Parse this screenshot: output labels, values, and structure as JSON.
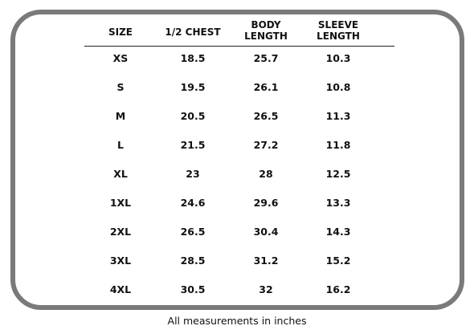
{
  "table": {
    "headers": [
      "SIZE",
      "1/2 CHEST",
      "BODY\nLENGTH",
      "SLEEVE\nLENGTH"
    ],
    "rows": [
      [
        "XS",
        18.5,
        25.7,
        10.3
      ],
      [
        "S",
        19.5,
        26.1,
        10.8
      ],
      [
        "M",
        20.5,
        26.5,
        11.3
      ],
      [
        "L",
        21.5,
        27.2,
        11.8
      ],
      [
        "XL",
        23,
        28,
        12.5
      ],
      [
        "1XL",
        24.6,
        29.6,
        13.3
      ],
      [
        "2XL",
        26.5,
        30.4,
        14.3
      ],
      [
        "3XL",
        28.5,
        31.2,
        15.2
      ],
      [
        "4XL",
        30.5,
        32,
        16.2
      ]
    ]
  },
  "footer": "All measurements in inches"
}
